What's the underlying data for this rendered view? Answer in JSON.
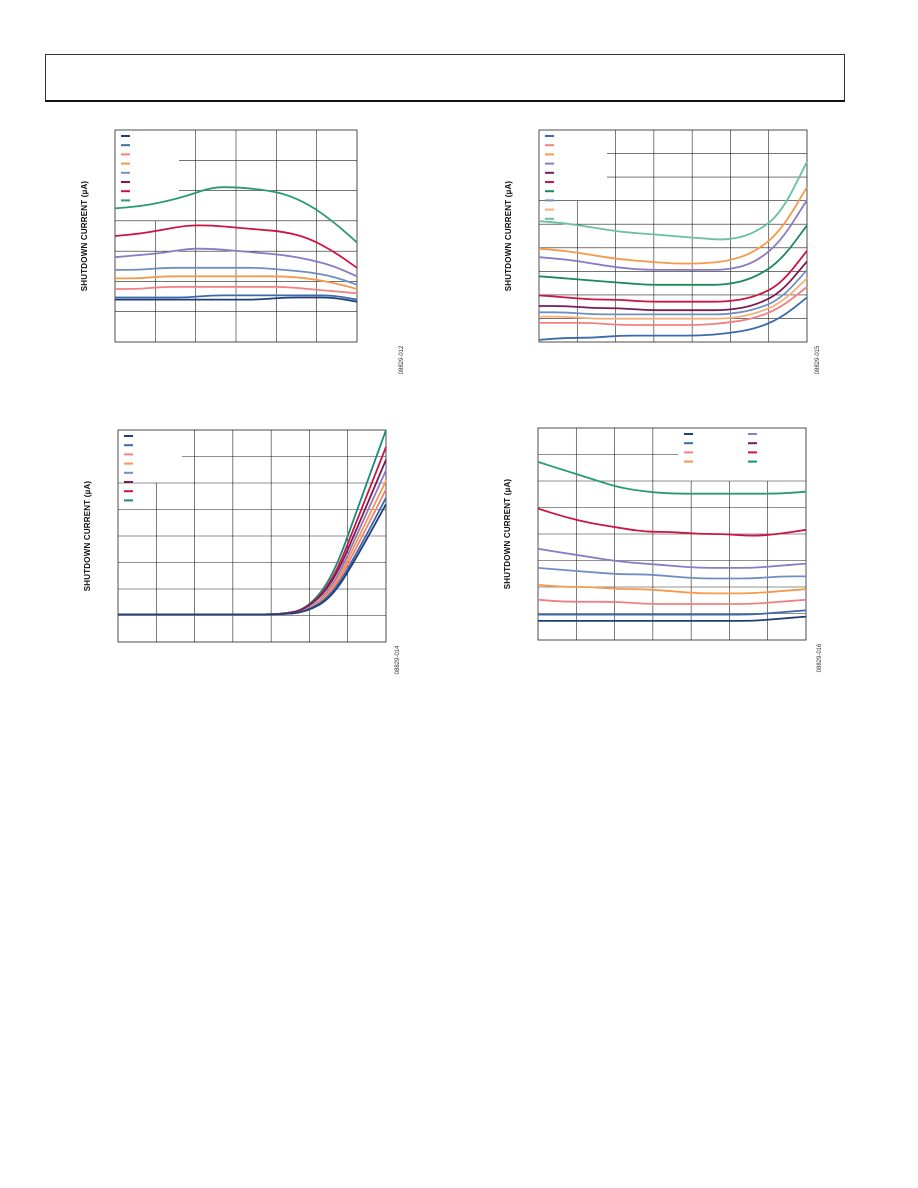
{
  "page": {
    "header_text": ""
  },
  "chart_data": [
    {
      "type": "line",
      "id": "upper-left",
      "ylabel": "SHUTDOWN CURRENT (µA)",
      "figure_id": "08829-012",
      "grid": true,
      "legend_position": "top-left",
      "legend_colors": [
        "#1f3f7a",
        "#3a6aa8",
        "#f28080",
        "#f59a4a",
        "#7b8fc4",
        "#7b1a55",
        "#cc1540",
        "#2a9a78"
      ],
      "series": [
        {
          "color": "#2a9a78",
          "values": [
            0.37,
            0.36,
            0.34,
            0.31,
            0.27,
            0.27,
            0.28,
            0.3,
            0.35,
            0.43,
            0.53
          ]
        },
        {
          "color": "#cc1540",
          "values": [
            0.5,
            0.49,
            0.47,
            0.45,
            0.45,
            0.46,
            0.47,
            0.48,
            0.51,
            0.57,
            0.65
          ]
        },
        {
          "color": "#8b7ac4",
          "values": [
            0.6,
            0.59,
            0.58,
            0.56,
            0.56,
            0.57,
            0.58,
            0.59,
            0.61,
            0.64,
            0.69
          ]
        },
        {
          "color": "#6f8fc0",
          "values": [
            0.66,
            0.66,
            0.65,
            0.65,
            0.65,
            0.65,
            0.65,
            0.66,
            0.67,
            0.69,
            0.73
          ]
        },
        {
          "color": "#f59a4a",
          "values": [
            0.7,
            0.7,
            0.69,
            0.69,
            0.69,
            0.69,
            0.69,
            0.69,
            0.7,
            0.72,
            0.75
          ]
        },
        {
          "color": "#f28080",
          "values": [
            0.75,
            0.75,
            0.74,
            0.74,
            0.74,
            0.74,
            0.74,
            0.74,
            0.75,
            0.76,
            0.77
          ]
        },
        {
          "color": "#3a6aa8",
          "values": [
            0.79,
            0.79,
            0.79,
            0.79,
            0.78,
            0.78,
            0.78,
            0.78,
            0.78,
            0.78,
            0.8
          ]
        },
        {
          "color": "#1f3f7a",
          "values": [
            0.8,
            0.8,
            0.8,
            0.8,
            0.8,
            0.8,
            0.8,
            0.79,
            0.79,
            0.79,
            0.81
          ]
        }
      ]
    },
    {
      "type": "line",
      "id": "upper-right",
      "ylabel": "SHUTDOWN CURRENT (µA)",
      "figure_id": "08829-015",
      "grid": true,
      "legend_position": "top-left",
      "legend_colors": [
        "#3a6aa8",
        "#f28080",
        "#f59a4a",
        "#8b7ac4",
        "#7b1a55",
        "#cc1540",
        "#1a8a5a",
        "#6f8fc0",
        "#f5b07a",
        "#6ac0a0"
      ],
      "series": [
        {
          "color": "#6ac0a0",
          "values": [
            0.43,
            0.44,
            0.46,
            0.48,
            0.49,
            0.5,
            0.51,
            0.52,
            0.49,
            0.4,
            0.15
          ]
        },
        {
          "color": "#f59a4a",
          "values": [
            0.56,
            0.57,
            0.59,
            0.61,
            0.62,
            0.63,
            0.63,
            0.62,
            0.58,
            0.48,
            0.27
          ]
        },
        {
          "color": "#8b7ac4",
          "values": [
            0.6,
            0.61,
            0.63,
            0.65,
            0.66,
            0.66,
            0.66,
            0.66,
            0.63,
            0.53,
            0.33
          ]
        },
        {
          "color": "#1a8a5a",
          "values": [
            0.69,
            0.7,
            0.71,
            0.72,
            0.73,
            0.73,
            0.73,
            0.73,
            0.7,
            0.62,
            0.45
          ]
        },
        {
          "color": "#cc1540",
          "values": [
            0.78,
            0.79,
            0.8,
            0.8,
            0.81,
            0.81,
            0.81,
            0.81,
            0.79,
            0.73,
            0.57
          ]
        },
        {
          "color": "#7b1a55",
          "values": [
            0.83,
            0.83,
            0.84,
            0.84,
            0.85,
            0.85,
            0.85,
            0.85,
            0.83,
            0.77,
            0.62
          ]
        },
        {
          "color": "#6f8fc0",
          "values": [
            0.86,
            0.86,
            0.87,
            0.87,
            0.87,
            0.87,
            0.87,
            0.87,
            0.85,
            0.8,
            0.66
          ]
        },
        {
          "color": "#f5b07a",
          "values": [
            0.88,
            0.88,
            0.89,
            0.89,
            0.89,
            0.89,
            0.89,
            0.89,
            0.87,
            0.82,
            0.7
          ]
        },
        {
          "color": "#f28080",
          "values": [
            0.91,
            0.91,
            0.91,
            0.92,
            0.92,
            0.92,
            0.92,
            0.91,
            0.89,
            0.84,
            0.74
          ]
        },
        {
          "color": "#3a6aa8",
          "values": [
            0.99,
            0.98,
            0.98,
            0.97,
            0.97,
            0.97,
            0.97,
            0.96,
            0.94,
            0.89,
            0.79
          ]
        }
      ]
    },
    {
      "type": "line",
      "id": "lower-left",
      "ylabel": "SHUTDOWN CURRENT (µA)",
      "figure_id": "08829-014",
      "grid": true,
      "legend_position": "top-left",
      "legend_colors": [
        "#1f3f7a",
        "#3a6aa8",
        "#f28080",
        "#f59a4a",
        "#6f8fc0",
        "#7b1a55",
        "#cc1540",
        "#1a8a7a"
      ],
      "series": [
        {
          "color": "#1a8a7a",
          "values": [
            0.87,
            0.87,
            0.87,
            0.87,
            0.87,
            0.87,
            0.87,
            0.85,
            0.7,
            0.35,
            0.0
          ]
        },
        {
          "color": "#cc1540",
          "values": [
            0.87,
            0.87,
            0.87,
            0.87,
            0.87,
            0.87,
            0.87,
            0.85,
            0.72,
            0.4,
            0.08
          ]
        },
        {
          "color": "#7b1a55",
          "values": [
            0.87,
            0.87,
            0.87,
            0.87,
            0.87,
            0.87,
            0.87,
            0.85,
            0.73,
            0.44,
            0.14
          ]
        },
        {
          "color": "#8b7ac4",
          "values": [
            0.87,
            0.87,
            0.87,
            0.87,
            0.87,
            0.87,
            0.87,
            0.86,
            0.75,
            0.47,
            0.19
          ]
        },
        {
          "color": "#f59a4a",
          "values": [
            0.87,
            0.87,
            0.87,
            0.87,
            0.87,
            0.87,
            0.87,
            0.86,
            0.76,
            0.5,
            0.24
          ]
        },
        {
          "color": "#f28080",
          "values": [
            0.87,
            0.87,
            0.87,
            0.87,
            0.87,
            0.87,
            0.87,
            0.86,
            0.77,
            0.53,
            0.28
          ]
        },
        {
          "color": "#3a6aa8",
          "values": [
            0.87,
            0.87,
            0.87,
            0.87,
            0.87,
            0.87,
            0.87,
            0.86,
            0.78,
            0.56,
            0.32
          ]
        },
        {
          "color": "#1f3f7a",
          "values": [
            0.87,
            0.87,
            0.87,
            0.87,
            0.87,
            0.87,
            0.87,
            0.86,
            0.79,
            0.58,
            0.35
          ]
        }
      ]
    },
    {
      "type": "line",
      "id": "lower-right",
      "ylabel": "SHUTDOWN CURRENT (µA)",
      "figure_id": "08829-016",
      "grid": true,
      "legend_position": "top-right",
      "legend_colors": [
        "#1f3f7a",
        "#3a6aa8",
        "#f28080",
        "#f59a4a",
        "#8b7ac4",
        "#7b1a55",
        "#cc1540",
        "#1a8a7a"
      ],
      "series": [
        {
          "color": "#2a9a78",
          "values": [
            0.16,
            0.2,
            0.24,
            0.28,
            0.3,
            0.31,
            0.31,
            0.31,
            0.31,
            0.31,
            0.3
          ]
        },
        {
          "color": "#cc1540",
          "values": [
            0.38,
            0.42,
            0.45,
            0.47,
            0.49,
            0.49,
            0.5,
            0.5,
            0.51,
            0.5,
            0.48
          ]
        },
        {
          "color": "#8b7ac4",
          "values": [
            0.57,
            0.59,
            0.61,
            0.63,
            0.64,
            0.65,
            0.66,
            0.66,
            0.66,
            0.65,
            0.64
          ]
        },
        {
          "color": "#6f8fc0",
          "values": [
            0.66,
            0.67,
            0.68,
            0.69,
            0.69,
            0.7,
            0.71,
            0.71,
            0.71,
            0.7,
            0.7
          ]
        },
        {
          "color": "#f59a4a",
          "values": [
            0.74,
            0.75,
            0.75,
            0.76,
            0.76,
            0.77,
            0.78,
            0.78,
            0.78,
            0.77,
            0.76
          ]
        },
        {
          "color": "#f28080",
          "values": [
            0.81,
            0.82,
            0.82,
            0.82,
            0.83,
            0.83,
            0.83,
            0.83,
            0.83,
            0.82,
            0.81
          ]
        },
        {
          "color": "#3a6aa8",
          "values": [
            0.88,
            0.88,
            0.88,
            0.88,
            0.88,
            0.88,
            0.88,
            0.88,
            0.88,
            0.87,
            0.86
          ]
        },
        {
          "color": "#1f3f7a",
          "values": [
            0.91,
            0.91,
            0.91,
            0.91,
            0.91,
            0.91,
            0.91,
            0.91,
            0.91,
            0.9,
            0.89
          ]
        }
      ]
    }
  ]
}
